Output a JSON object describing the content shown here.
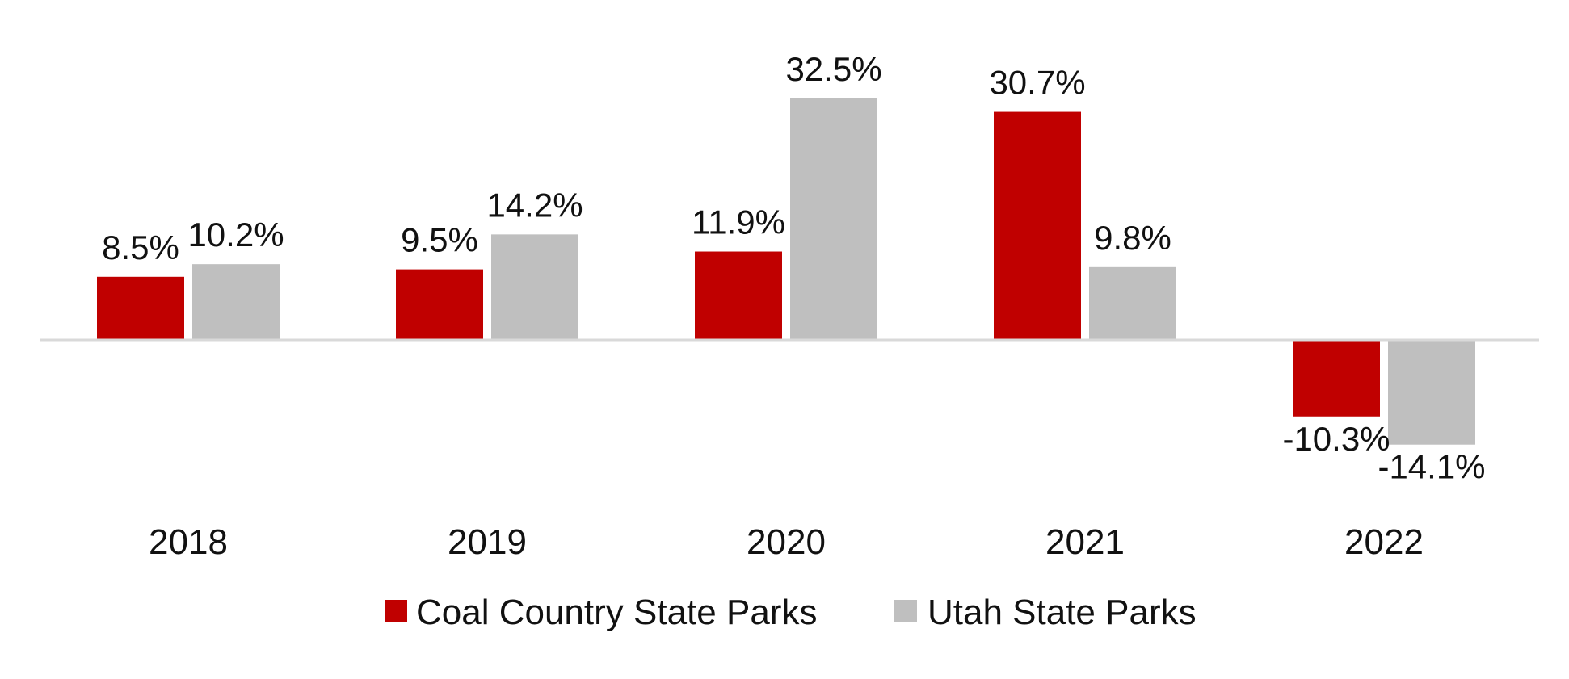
{
  "chart_data": {
    "type": "bar",
    "categories": [
      "2018",
      "2019",
      "2020",
      "2021",
      "2022"
    ],
    "series": [
      {
        "name": "Coal Country State Parks",
        "color": "#C00000",
        "values": [
          8.5,
          9.5,
          11.9,
          30.7,
          -10.3
        ],
        "labels": [
          "8.5%",
          "9.5%",
          "11.9%",
          "30.7%",
          "-10.3%"
        ]
      },
      {
        "name": "Utah State Parks",
        "color": "#BFBFBF",
        "values": [
          10.2,
          14.2,
          32.5,
          9.8,
          -14.1
        ],
        "labels": [
          "10.2%",
          "14.2%",
          "32.5%",
          "9.8%",
          "-14.1%"
        ]
      }
    ],
    "ylim": [
      -20,
      40
    ],
    "grid": false,
    "legend": "bottom-center",
    "title": "",
    "xlabel": "",
    "ylabel": ""
  }
}
